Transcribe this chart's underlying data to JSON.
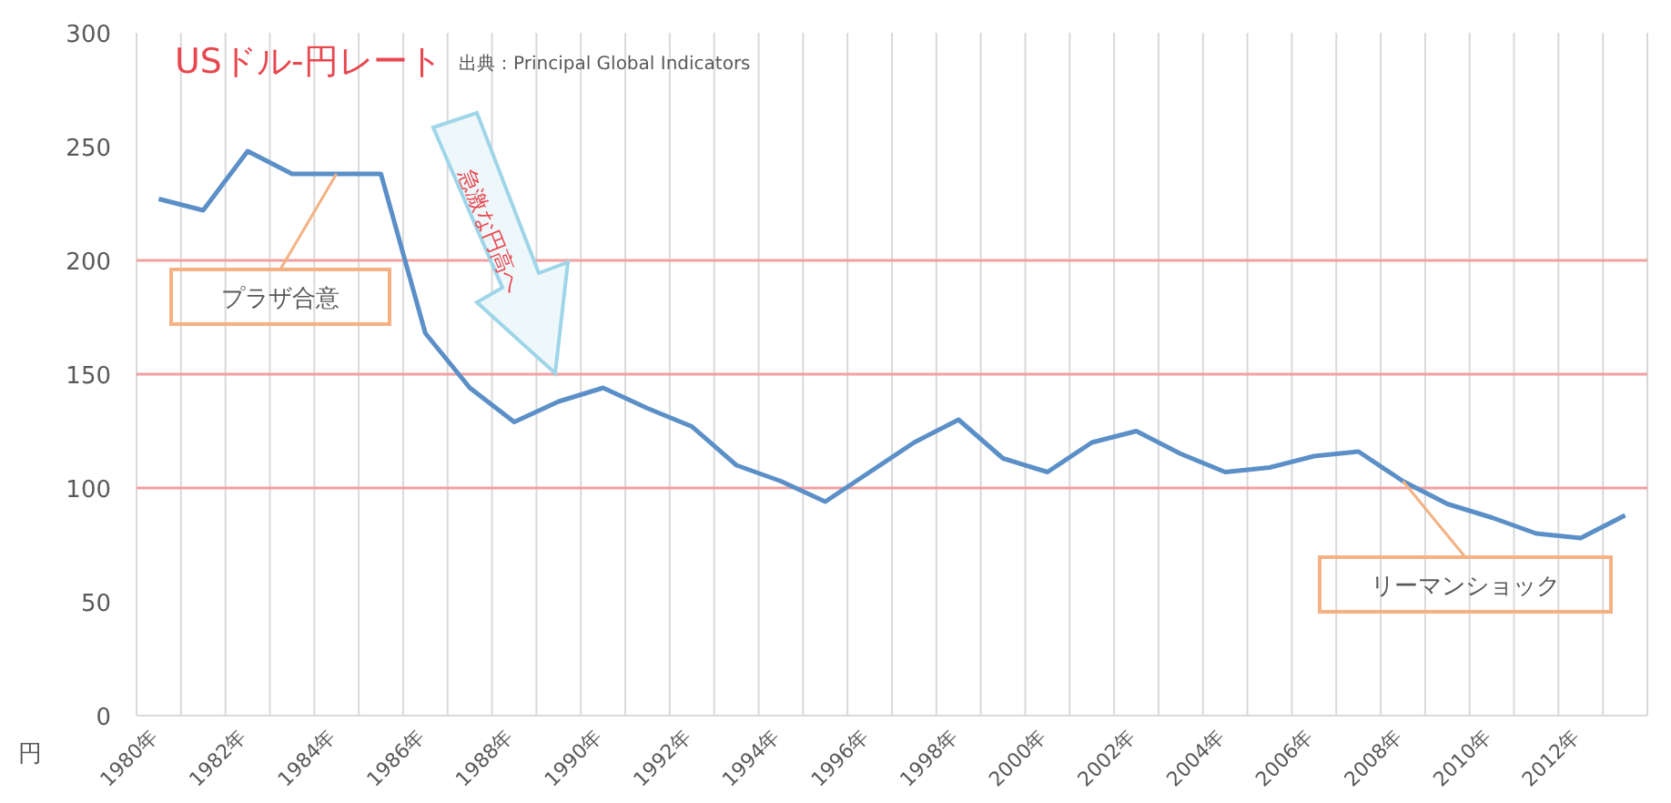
{
  "chart_data": {
    "type": "line",
    "title": "USドル-円レート",
    "subtitle": "出典：Principal Global Indicators",
    "ylabel": "円",
    "categories": [
      "1980年",
      null,
      "1982年",
      null,
      "1984年",
      null,
      "1986年",
      null,
      "1988年",
      null,
      "1990年",
      null,
      "1992年",
      null,
      "1994年",
      null,
      "1996年",
      null,
      "1998年",
      null,
      "2000年",
      null,
      "2002年",
      null,
      "2004年",
      null,
      "2006年",
      null,
      "2008年",
      null,
      "2010年",
      null,
      "2012年",
      null
    ],
    "series": [
      {
        "color": "#5b8fc7",
        "values": [
          227,
          222,
          248,
          238,
          238,
          238,
          168,
          144,
          129,
          138,
          144,
          135,
          127,
          110,
          103,
          94,
          107,
          120,
          130,
          113,
          107,
          120,
          125,
          115,
          107,
          109,
          114,
          116,
          103,
          93,
          87,
          80,
          78,
          88
        ]
      }
    ],
    "ylim": [
      0,
      300
    ],
    "yticks": [
      0,
      50,
      100,
      150,
      200,
      250,
      300
    ],
    "grid": "x",
    "marker": "none",
    "line_style": "solid",
    "ref_lines": [
      {
        "axis": "y",
        "value": 100,
        "color": "#f2a0a0"
      },
      {
        "axis": "y",
        "value": 150,
        "color": "#f2a0a0"
      },
      {
        "axis": "y",
        "value": 200,
        "color": "#f2a0a0"
      }
    ],
    "annotations": [
      {
        "text": "プラザ合意",
        "x": "1984年",
        "y": 238
      },
      "急激な円高へ",
      {
        "text": "リーマンショック",
        "x": "2008年",
        "y": 103
      }
    ]
  }
}
